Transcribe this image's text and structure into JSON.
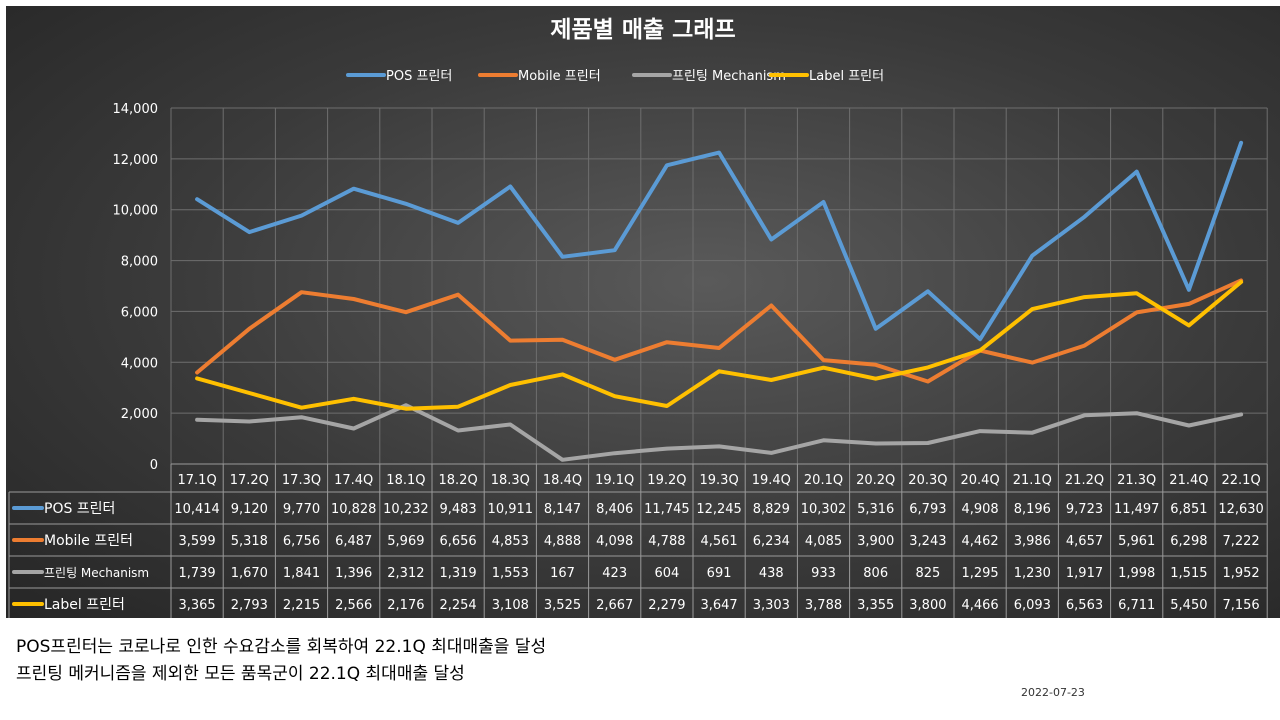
{
  "chart_data": {
    "type": "line",
    "title": "제품별 매출 그래프",
    "categories": [
      "17.1Q",
      "17.2Q",
      "17.3Q",
      "17.4Q",
      "18.1Q",
      "18.2Q",
      "18.3Q",
      "18.4Q",
      "19.1Q",
      "19.2Q",
      "19.3Q",
      "19.4Q",
      "20.1Q",
      "20.2Q",
      "20.3Q",
      "20.4Q",
      "21.1Q",
      "21.2Q",
      "21.3Q",
      "21.4Q",
      "22.1Q"
    ],
    "ylim": [
      0,
      14000
    ],
    "yticks": [
      0,
      2000,
      4000,
      6000,
      8000,
      10000,
      12000,
      14000
    ],
    "ytick_labels": [
      "0",
      "2,000",
      "4,000",
      "6,000",
      "8,000",
      "10,000",
      "12,000",
      "14,000"
    ],
    "grid": true,
    "legend_position": "top-center",
    "series": [
      {
        "name": "POS 프린터",
        "color": "#5b9bd5",
        "values": [
          10414,
          9120,
          9770,
          10828,
          10232,
          9483,
          10911,
          8147,
          8406,
          11745,
          12245,
          8829,
          10302,
          5316,
          6793,
          4908,
          8196,
          9723,
          11497,
          6851,
          12630
        ],
        "labels": [
          "10,414",
          "9,120",
          "9,770",
          "10,828",
          "10,232",
          "9,483",
          "10,911",
          "8,147",
          "8,406",
          "11,745",
          "12,245",
          "8,829",
          "10,302",
          "5,316",
          "6,793",
          "4,908",
          "8,196",
          "9,723",
          "11,497",
          "6,851",
          "12,630"
        ]
      },
      {
        "name": "Mobile 프린터",
        "color": "#ed7d31",
        "values": [
          3599,
          5318,
          6756,
          6487,
          5969,
          6656,
          4853,
          4888,
          4098,
          4788,
          4561,
          6234,
          4085,
          3900,
          3243,
          4462,
          3986,
          4657,
          5961,
          6298,
          7222
        ],
        "labels": [
          "3,599",
          "5,318",
          "6,756",
          "6,487",
          "5,969",
          "6,656",
          "4,853",
          "4,888",
          "4,098",
          "4,788",
          "4,561",
          "6,234",
          "4,085",
          "3,900",
          "3,243",
          "4,462",
          "3,986",
          "4,657",
          "5,961",
          "6,298",
          "7,222"
        ]
      },
      {
        "name": "프린팅 Mechanism",
        "color": "#a5a5a5",
        "values": [
          1739,
          1670,
          1841,
          1396,
          2312,
          1319,
          1553,
          167,
          423,
          604,
          691,
          438,
          933,
          806,
          825,
          1295,
          1230,
          1917,
          1998,
          1515,
          1952
        ],
        "labels": [
          "1,739",
          "1,670",
          "1,841",
          "1,396",
          "2,312",
          "1,319",
          "1,553",
          "167",
          "423",
          "604",
          "691",
          "438",
          "933",
          "806",
          "825",
          "1,295",
          "1,230",
          "1,917",
          "1,998",
          "1,515",
          "1,952"
        ]
      },
      {
        "name": "Label 프린터",
        "color": "#ffc000",
        "values": [
          3365,
          2793,
          2215,
          2566,
          2176,
          2254,
          3108,
          3525,
          2667,
          2279,
          3647,
          3303,
          3788,
          3355,
          3800,
          4466,
          6093,
          6563,
          6711,
          5450,
          7156
        ],
        "labels": [
          "3,365",
          "2,793",
          "2,215",
          "2,566",
          "2,176",
          "2,254",
          "3,108",
          "3,525",
          "2,667",
          "2,279",
          "3,647",
          "3,303",
          "3,788",
          "3,355",
          "3,800",
          "4,466",
          "6,093",
          "6,563",
          "6,711",
          "5,450",
          "7,156"
        ]
      }
    ]
  },
  "captions": {
    "line1": "POS프린터는 코로나로 인한 수요감소를  회복하여 22.1Q 최대매출을  달성",
    "line2": "프린팅 메커니즘을 제외한 모든 품목군이 22.1Q 최대매출 달성"
  },
  "date": "2022-07-23"
}
